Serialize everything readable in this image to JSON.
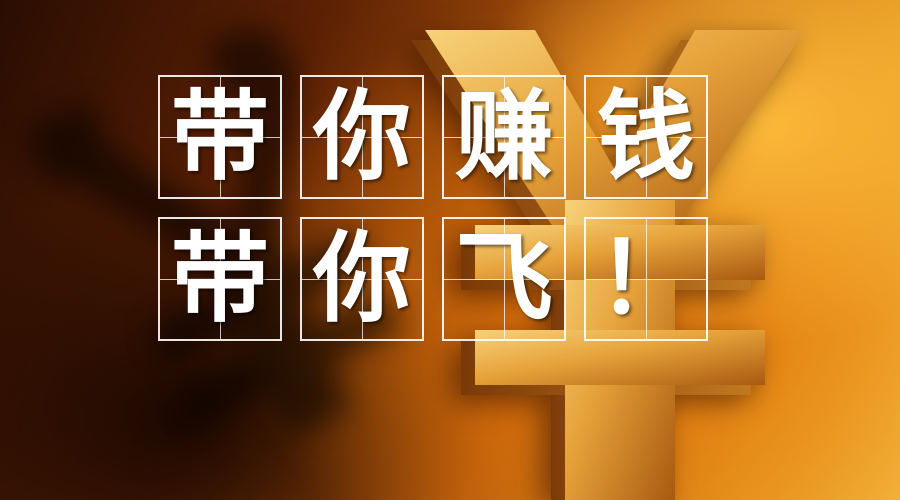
{
  "headline": {
    "line1": [
      "带",
      "你",
      "赚",
      "钱"
    ],
    "line2": [
      "带",
      "你",
      "飞",
      "！"
    ]
  },
  "colors": {
    "text": "#ffffff",
    "grid": "#ffffff",
    "gold": "#e6a23a",
    "shadow": "#2a0d02"
  }
}
